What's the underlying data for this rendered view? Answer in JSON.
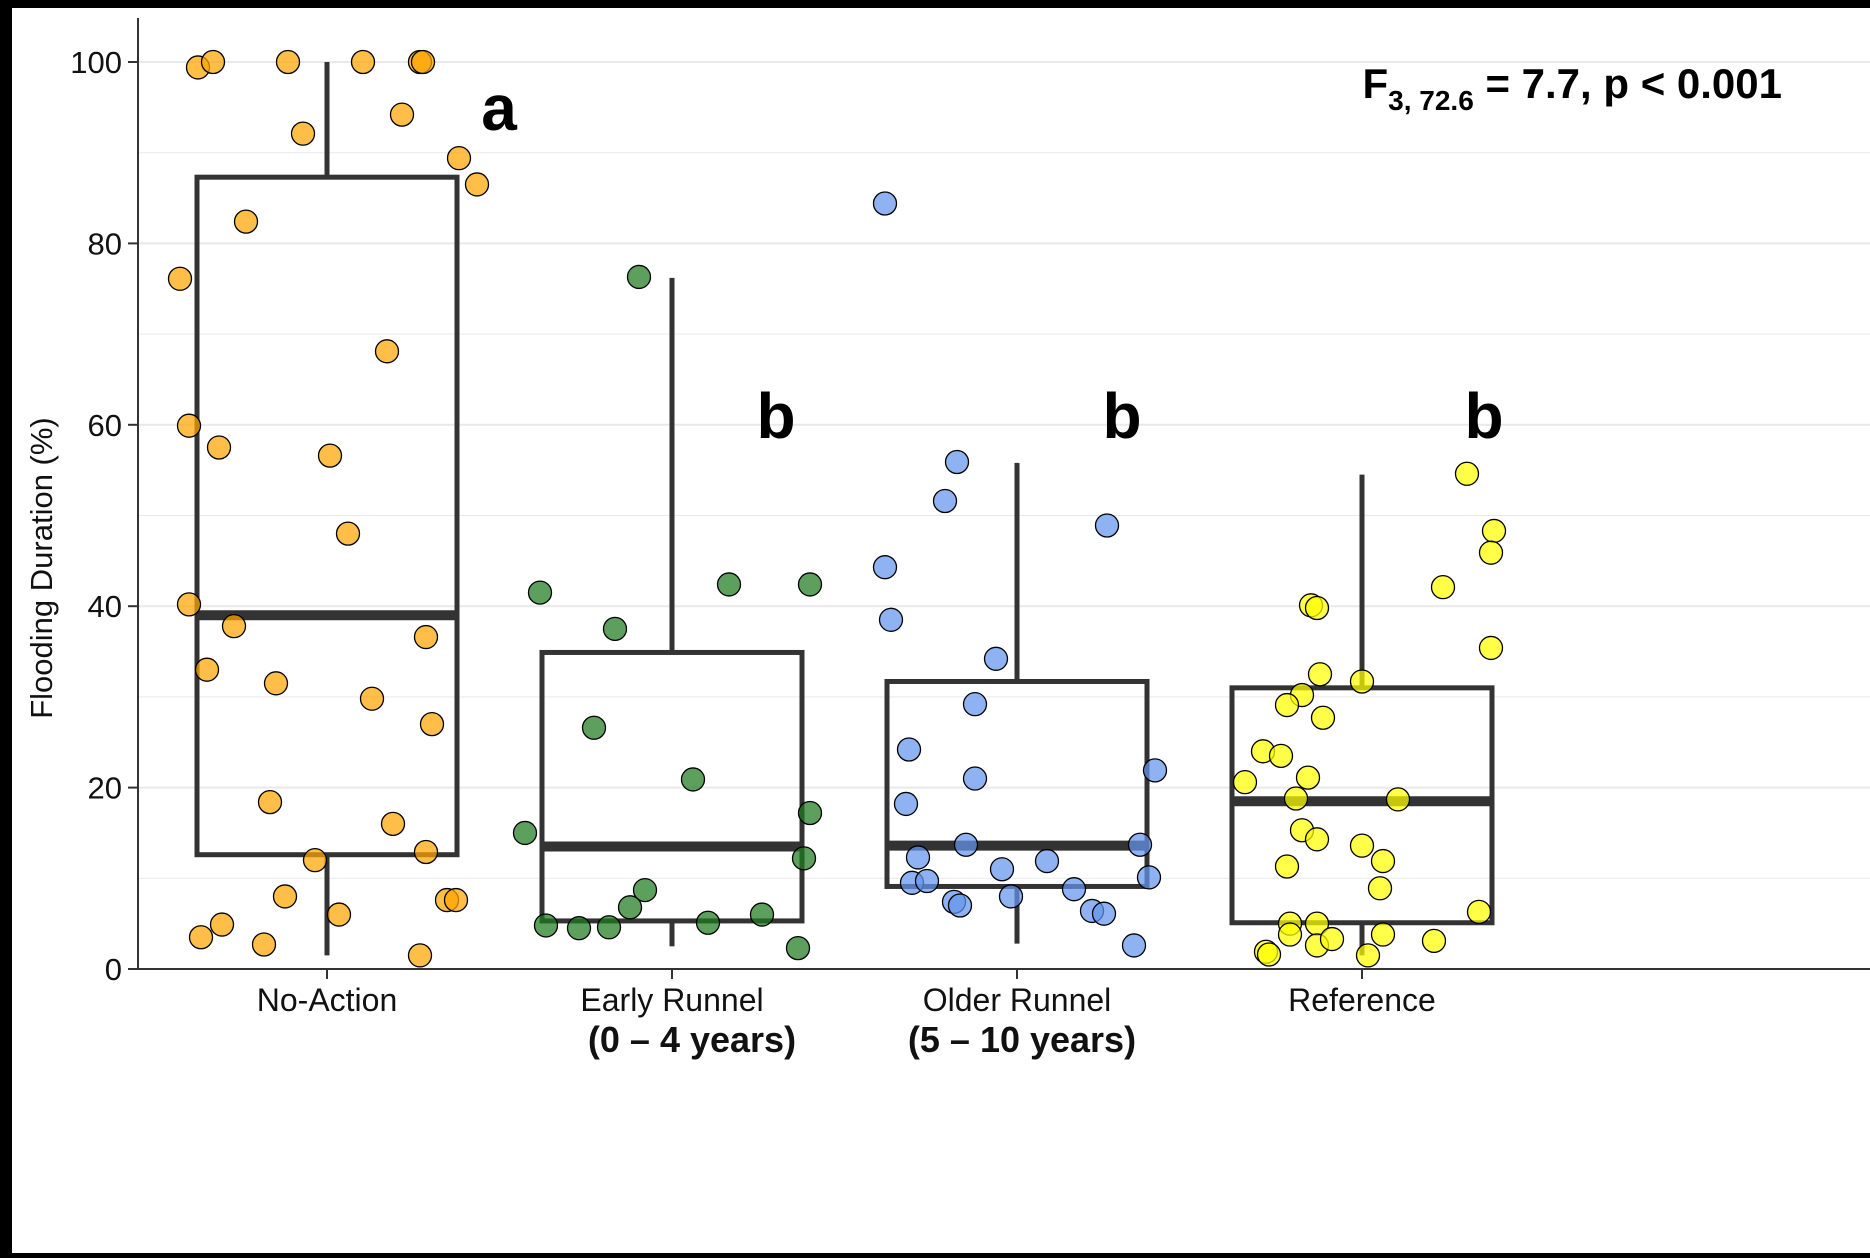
{
  "chart_data": {
    "type": "box",
    "title": "",
    "xlabel": "",
    "ylabel": "Flooding Duration (%)",
    "ylim": [
      0,
      105
    ],
    "y_ticks": [
      0,
      20,
      40,
      60,
      80,
      100
    ],
    "grid": true,
    "legend": "none",
    "stat_annotation": {
      "prefix": "F",
      "subscript": "3, 72.6",
      "suffix": " = 7.7, p < 0.001"
    },
    "categories": [
      {
        "label": "No-Action",
        "sublabel": "",
        "letter": "a",
        "color": "#FFA500",
        "box": {
          "whisker_low": 1.5,
          "q1": 12.6,
          "median": 39.0,
          "q3": 87.3,
          "whisker_high": 100
        },
        "points": [
          [
            -0.43,
            99.4
          ],
          [
            -0.38,
            100
          ],
          [
            -0.13,
            100
          ],
          [
            0.12,
            100
          ],
          [
            0.31,
            100
          ],
          [
            0.32,
            100
          ],
          [
            0.25,
            94.2
          ],
          [
            -0.08,
            92.1
          ],
          [
            0.44,
            89.4
          ],
          [
            0.5,
            86.5
          ],
          [
            -0.27,
            82.4
          ],
          [
            -0.49,
            76.1
          ],
          [
            0.2,
            68.1
          ],
          [
            -0.46,
            59.9
          ],
          [
            -0.36,
            57.5
          ],
          [
            0.01,
            56.6
          ],
          [
            0.07,
            48.0
          ],
          [
            -0.46,
            40.2
          ],
          [
            -0.31,
            37.8
          ],
          [
            0.33,
            36.6
          ],
          [
            -0.4,
            33.0
          ],
          [
            -0.17,
            31.5
          ],
          [
            0.15,
            29.8
          ],
          [
            0.35,
            27.0
          ],
          [
            -0.19,
            18.4
          ],
          [
            0.22,
            16.0
          ],
          [
            0.33,
            12.9
          ],
          [
            -0.04,
            12.0
          ],
          [
            -0.14,
            8.0
          ],
          [
            0.4,
            7.6
          ],
          [
            0.43,
            7.6
          ],
          [
            0.04,
            6.0
          ],
          [
            -0.35,
            4.9
          ],
          [
            -0.42,
            3.5
          ],
          [
            -0.21,
            2.7
          ],
          [
            0.31,
            1.5
          ]
        ]
      },
      {
        "label": "Early Runnel",
        "sublabel": "(0 – 4 years)",
        "letter": "b",
        "color": "#1E7A1E",
        "box": {
          "whisker_low": 2.5,
          "q1": 5.3,
          "median": 13.5,
          "q3": 34.9,
          "whisker_high": 76.2
        },
        "points": [
          [
            -0.11,
            76.3
          ],
          [
            -0.44,
            41.5
          ],
          [
            0.19,
            42.4
          ],
          [
            0.46,
            42.4
          ],
          [
            -0.19,
            37.5
          ],
          [
            -0.26,
            26.6
          ],
          [
            0.07,
            20.9
          ],
          [
            -0.49,
            15.0
          ],
          [
            0.46,
            17.2
          ],
          [
            0.44,
            12.2
          ],
          [
            -0.09,
            8.7
          ],
          [
            -0.14,
            6.8
          ],
          [
            0.3,
            6.0
          ],
          [
            -0.42,
            4.8
          ],
          [
            -0.31,
            4.5
          ],
          [
            -0.21,
            4.6
          ],
          [
            0.12,
            5.1
          ],
          [
            0.42,
            2.3
          ]
        ]
      },
      {
        "label": "Older Runnel",
        "sublabel": "(5 – 10 years)",
        "letter": "b",
        "color": "#6495ED",
        "box": {
          "whisker_low": 2.8,
          "q1": 9.1,
          "median": 13.6,
          "q3": 31.7,
          "whisker_high": 55.8
        },
        "points": [
          [
            -0.44,
            84.4
          ],
          [
            -0.2,
            55.9
          ],
          [
            -0.24,
            51.6
          ],
          [
            0.3,
            48.9
          ],
          [
            -0.44,
            44.3
          ],
          [
            -0.42,
            38.5
          ],
          [
            -0.07,
            34.2
          ],
          [
            -0.14,
            29.2
          ],
          [
            -0.36,
            24.2
          ],
          [
            -0.14,
            21.0
          ],
          [
            0.46,
            21.9
          ],
          [
            -0.37,
            18.2
          ],
          [
            -0.17,
            13.7
          ],
          [
            0.41,
            13.7
          ],
          [
            -0.33,
            12.3
          ],
          [
            -0.05,
            11.0
          ],
          [
            0.1,
            11.9
          ],
          [
            0.44,
            10.1
          ],
          [
            -0.35,
            9.5
          ],
          [
            -0.3,
            9.7
          ],
          [
            0.19,
            8.8
          ],
          [
            -0.02,
            8.0
          ],
          [
            -0.21,
            7.4
          ],
          [
            -0.19,
            7.0
          ],
          [
            0.25,
            6.4
          ],
          [
            0.29,
            6.1
          ],
          [
            0.39,
            2.6
          ]
        ]
      },
      {
        "label": "Reference",
        "sublabel": "",
        "letter": "b",
        "color": "#FFFF00",
        "box": {
          "whisker_low": 1.5,
          "q1": 5.1,
          "median": 18.5,
          "q3": 31.0,
          "whisker_high": 54.5
        },
        "points": [
          [
            0.35,
            54.6
          ],
          [
            0.44,
            48.3
          ],
          [
            0.43,
            45.9
          ],
          [
            0.27,
            42.1
          ],
          [
            -0.17,
            40.1
          ],
          [
            -0.15,
            39.8
          ],
          [
            0.43,
            35.4
          ],
          [
            -0.14,
            32.5
          ],
          [
            0.0,
            31.7
          ],
          [
            -0.2,
            30.2
          ],
          [
            -0.25,
            29.1
          ],
          [
            -0.13,
            27.7
          ],
          [
            -0.33,
            24.0
          ],
          [
            -0.27,
            23.5
          ],
          [
            -0.18,
            21.1
          ],
          [
            -0.39,
            20.6
          ],
          [
            -0.22,
            18.8
          ],
          [
            0.12,
            18.7
          ],
          [
            -0.2,
            15.3
          ],
          [
            -0.15,
            14.3
          ],
          [
            0.0,
            13.6
          ],
          [
            0.07,
            11.9
          ],
          [
            -0.25,
            11.3
          ],
          [
            0.06,
            8.9
          ],
          [
            0.39,
            6.3
          ],
          [
            -0.24,
            5.0
          ],
          [
            -0.15,
            5.0
          ],
          [
            -0.24,
            3.8
          ],
          [
            -0.15,
            2.6
          ],
          [
            -0.1,
            3.3
          ],
          [
            0.07,
            3.8
          ],
          [
            0.24,
            3.1
          ],
          [
            -0.32,
            1.9
          ],
          [
            -0.31,
            1.6
          ],
          [
            0.02,
            1.5
          ]
        ]
      }
    ]
  }
}
